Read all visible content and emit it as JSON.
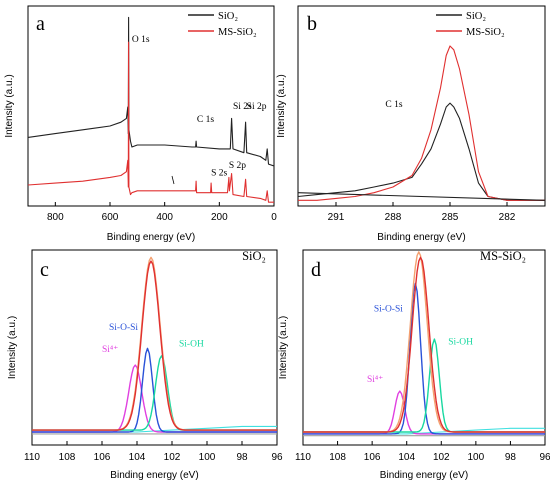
{
  "colors": {
    "black": "#222222",
    "red": "#e03030",
    "orange": "#f4a070",
    "blue": "#2a52d8",
    "green": "#18d8a0",
    "magenta": "#e040e0",
    "cyan": "#40e0e0",
    "gray": "#a0a0a0"
  },
  "chart_data": [
    {
      "id": "a",
      "type": "line",
      "panel_label": "a",
      "xlabel": "Binding energy (eV)",
      "ylabel": "Intensity (a.u.)",
      "xlim": [
        900,
        0
      ],
      "xticks": [
        800,
        600,
        400,
        200,
        0
      ],
      "legend": [
        {
          "name": "SiO₂",
          "color": "#222222"
        },
        {
          "name": "MS-SiO₂",
          "color": "#e03030"
        }
      ],
      "annotations": [
        {
          "text": "O 1s",
          "x": 520,
          "y": 0.86,
          "color": "#000000"
        },
        {
          "text": "C 1s",
          "x": 282,
          "y": 0.44,
          "color": "#000000"
        },
        {
          "text": "Si 2s",
          "x": 150,
          "y": 0.51,
          "color": "#000000"
        },
        {
          "text": "Si 2p",
          "x": 100,
          "y": 0.51,
          "color": "#000000"
        },
        {
          "text": "S 2s",
          "x": 230,
          "y": 0.16,
          "color": "#000000"
        },
        {
          "text": "S 2p",
          "x": 165,
          "y": 0.2,
          "color": "#000000"
        }
      ],
      "series": [
        {
          "name": "SiO₂",
          "color": "#222222",
          "points": [
            [
              900,
              0.36
            ],
            [
              800,
              0.38
            ],
            [
              700,
              0.4
            ],
            [
              600,
              0.42
            ],
            [
              560,
              0.44
            ],
            [
              540,
              0.46
            ],
            [
              535,
              0.52
            ],
            [
              533,
              0.38
            ],
            [
              532,
              0.99
            ],
            [
              531,
              0.4
            ],
            [
              525,
              0.34
            ],
            [
              520,
              0.31
            ],
            [
              500,
              0.32
            ],
            [
              400,
              0.32
            ],
            [
              300,
              0.31
            ],
            [
              287,
              0.31
            ],
            [
              285,
              0.34
            ],
            [
              283,
              0.31
            ],
            [
              200,
              0.3
            ],
            [
              160,
              0.3
            ],
            [
              155,
              0.46
            ],
            [
              150,
              0.3
            ],
            [
              110,
              0.28
            ],
            [
              104,
              0.44
            ],
            [
              100,
              0.28
            ],
            [
              50,
              0.26
            ],
            [
              30,
              0.24
            ],
            [
              25,
              0.3
            ],
            [
              20,
              0.22
            ],
            [
              0,
              0.21
            ]
          ]
        },
        {
          "name": "MS-SiO₂",
          "color": "#e03030",
          "points": [
            [
              900,
              0.11
            ],
            [
              800,
              0.12
            ],
            [
              700,
              0.13
            ],
            [
              600,
              0.15
            ],
            [
              560,
              0.16
            ],
            [
              540,
              0.18
            ],
            [
              535,
              0.24
            ],
            [
              533,
              0.1
            ],
            [
              532,
              0.86
            ],
            [
              531,
              0.1
            ],
            [
              525,
              0.06
            ],
            [
              520,
              0.07
            ],
            [
              500,
              0.08
            ],
            [
              400,
              0.08
            ],
            [
              300,
              0.08
            ],
            [
              287,
              0.08
            ],
            [
              285,
              0.13
            ],
            [
              283,
              0.07
            ],
            [
              232,
              0.07
            ],
            [
              230,
              0.12
            ],
            [
              228,
              0.07
            ],
            [
              170,
              0.07
            ],
            [
              165,
              0.15
            ],
            [
              163,
              0.08
            ],
            [
              155,
              0.17
            ],
            [
              150,
              0.06
            ],
            [
              110,
              0.05
            ],
            [
              104,
              0.14
            ],
            [
              100,
              0.05
            ],
            [
              50,
              0.04
            ],
            [
              30,
              0.03
            ],
            [
              25,
              0.08
            ],
            [
              20,
              0.02
            ],
            [
              0,
              0.02
            ]
          ]
        }
      ]
    },
    {
      "id": "b",
      "type": "line",
      "panel_label": "b",
      "xlabel": "Binding energy (eV)",
      "ylabel": "Intensity (a.u.)",
      "xlim": [
        293,
        280
      ],
      "xticks": [
        291,
        288,
        285,
        282
      ],
      "legend": [
        {
          "name": "SiO₂",
          "color": "#222222"
        },
        {
          "name": "MS-SiO₂",
          "color": "#e03030"
        }
      ],
      "annotations": [
        {
          "text": "C 1s",
          "x": 288.4,
          "y": 0.52,
          "color": "#000000"
        }
      ],
      "series": [
        {
          "name": "SiO₂",
          "color": "#222222",
          "points": [
            [
              293,
              0.05
            ],
            [
              292,
              0.06
            ],
            [
              291,
              0.07
            ],
            [
              290,
              0.08
            ],
            [
              289,
              0.1
            ],
            [
              288,
              0.12
            ],
            [
              287,
              0.15
            ],
            [
              286.5,
              0.22
            ],
            [
              286,
              0.3
            ],
            [
              285.5,
              0.43
            ],
            [
              285.2,
              0.52
            ],
            [
              285,
              0.54
            ],
            [
              284.8,
              0.52
            ],
            [
              284.5,
              0.46
            ],
            [
              284,
              0.3
            ],
            [
              283.5,
              0.12
            ],
            [
              283,
              0.05
            ],
            [
              282,
              0.03
            ],
            [
              281,
              0.03
            ],
            [
              280,
              0.03
            ]
          ]
        },
        {
          "name": "MS-SiO₂",
          "color": "#e03030",
          "points": [
            [
              293,
              0.03
            ],
            [
              292,
              0.03
            ],
            [
              291,
              0.04
            ],
            [
              290,
              0.05
            ],
            [
              289,
              0.07
            ],
            [
              288,
              0.1
            ],
            [
              287,
              0.16
            ],
            [
              286.5,
              0.25
            ],
            [
              286,
              0.4
            ],
            [
              285.5,
              0.62
            ],
            [
              285.2,
              0.79
            ],
            [
              285,
              0.84
            ],
            [
              284.8,
              0.82
            ],
            [
              284.5,
              0.72
            ],
            [
              284,
              0.48
            ],
            [
              283.5,
              0.18
            ],
            [
              283,
              0.05
            ],
            [
              282,
              0.03
            ],
            [
              281,
              0.03
            ],
            [
              280,
              0.03
            ]
          ]
        },
        {
          "name": "",
          "color": "#222222",
          "points": [
            [
              293,
              0.07
            ],
            [
              280,
              0.03
            ]
          ]
        }
      ]
    },
    {
      "id": "c",
      "type": "line",
      "panel_label": "c",
      "title": "SiO₂",
      "xlabel": "Binding energy (eV)",
      "ylabel": "Intensity (a.u.)",
      "xlim": [
        110,
        96
      ],
      "xticks": [
        110,
        108,
        106,
        104,
        102,
        100,
        98,
        96
      ],
      "annotations": [
        {
          "text": "Si-O-Si",
          "x": 105.6,
          "y": 0.62,
          "color": "#2a52d8"
        },
        {
          "text": "Si⁴⁺",
          "x": 106.0,
          "y": 0.5,
          "color": "#e040e0"
        },
        {
          "text": "Si-OH",
          "x": 101.6,
          "y": 0.53,
          "color": "#18d8a0"
        }
      ],
      "series": [
        {
          "name": "",
          "color": "#a0a0a0",
          "points": [
            [
              110,
              0.06
            ],
            [
              96,
              0.06
            ]
          ]
        },
        {
          "name": "",
          "color": "#40e0e0",
          "points": [
            [
              110,
              0.07
            ],
            [
              104,
              0.07
            ],
            [
              102,
              0.08
            ],
            [
              100,
              0.09
            ],
            [
              98,
              0.1
            ],
            [
              96,
              0.1
            ]
          ]
        },
        {
          "name": "",
          "color": "#e040e0",
          "gaussian": {
            "center": 104.1,
            "height": 0.36,
            "width": 0.55,
            "base": 0.07
          }
        },
        {
          "name": "",
          "color": "#2a52d8",
          "gaussian": {
            "center": 103.4,
            "height": 0.45,
            "width": 0.42,
            "base": 0.07
          }
        },
        {
          "name": "",
          "color": "#18d8a0",
          "gaussian": {
            "center": 102.6,
            "height": 0.4,
            "width": 0.5,
            "base": 0.08
          }
        },
        {
          "name": "",
          "color": "#f4a070",
          "gaussian": {
            "center": 103.2,
            "height": 0.93,
            "width": 0.78,
            "base": 0.08
          }
        },
        {
          "name": "",
          "color": "#e03030",
          "gaussian": {
            "center": 103.2,
            "height": 0.91,
            "width": 0.76,
            "base": 0.08
          }
        }
      ]
    },
    {
      "id": "d",
      "type": "line",
      "panel_label": "d",
      "title": "MS-SiO₂",
      "xlabel": "Binding energy (eV)",
      "ylabel": "Intensity (a.u.)",
      "xlim": [
        110,
        96
      ],
      "xticks": [
        110,
        108,
        106,
        104,
        102,
        100,
        98,
        96
      ],
      "annotations": [
        {
          "text": "Si-O-Si",
          "x": 105.9,
          "y": 0.72,
          "color": "#2a52d8"
        },
        {
          "text": "Si⁴⁺",
          "x": 106.3,
          "y": 0.34,
          "color": "#e040e0"
        },
        {
          "text": "Si-OH",
          "x": 101.6,
          "y": 0.54,
          "color": "#18d8a0"
        }
      ],
      "series": [
        {
          "name": "",
          "color": "#a0a0a0",
          "points": [
            [
              110,
              0.05
            ],
            [
              96,
              0.05
            ]
          ]
        },
        {
          "name": "",
          "color": "#40e0e0",
          "points": [
            [
              110,
              0.06
            ],
            [
              104,
              0.06
            ],
            [
              102,
              0.07
            ],
            [
              100,
              0.08
            ],
            [
              98,
              0.09
            ],
            [
              96,
              0.09
            ]
          ]
        },
        {
          "name": "",
          "color": "#e040e0",
          "gaussian": {
            "center": 104.4,
            "height": 0.23,
            "width": 0.42,
            "base": 0.06
          }
        },
        {
          "name": "",
          "color": "#2a52d8",
          "gaussian": {
            "center": 103.5,
            "height": 0.81,
            "width": 0.45,
            "base": 0.06
          }
        },
        {
          "name": "",
          "color": "#18d8a0",
          "gaussian": {
            "center": 102.4,
            "height": 0.5,
            "width": 0.42,
            "base": 0.07
          }
        },
        {
          "name": "",
          "color": "#f4a070",
          "gaussian": {
            "center": 103.3,
            "height": 0.97,
            "width": 0.72,
            "base": 0.07
          }
        },
        {
          "name": "",
          "color": "#e03030",
          "gaussian": {
            "center": 103.2,
            "height": 0.94,
            "width": 0.72,
            "base": 0.07
          }
        }
      ]
    }
  ]
}
